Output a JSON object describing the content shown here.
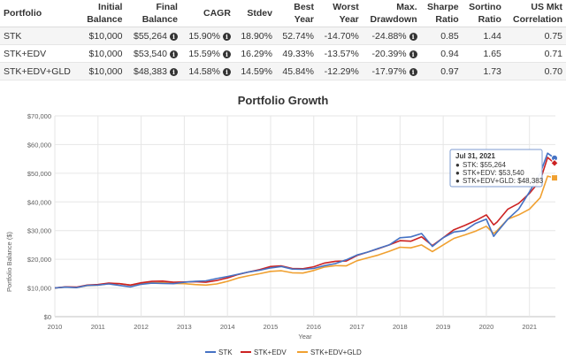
{
  "table": {
    "headers": [
      "Portfolio",
      "Initial\nBalance",
      "Final\nBalance",
      "CAGR",
      "Stdev",
      "Best\nYear",
      "Worst\nYear",
      "Max.\nDrawdown",
      "Sharpe\nRatio",
      "Sortino\nRatio",
      "US Mkt\nCorrelation"
    ],
    "rows": [
      {
        "portfolio": "STK",
        "initial": "$10,000",
        "final": "$55,264",
        "cagr": "15.90%",
        "stdev": "18.90%",
        "best": "52.74%",
        "worst": "-14.70%",
        "drawdown": "-24.88%",
        "sharpe": "0.85",
        "sortino": "1.44",
        "corr": "0.75"
      },
      {
        "portfolio": "STK+EDV",
        "initial": "$10,000",
        "final": "$53,540",
        "cagr": "15.59%",
        "stdev": "16.29%",
        "best": "49.33%",
        "worst": "-13.57%",
        "drawdown": "-20.39%",
        "sharpe": "0.94",
        "sortino": "1.65",
        "corr": "0.71"
      },
      {
        "portfolio": "STK+EDV+GLD",
        "initial": "$10,000",
        "final": "$48,383",
        "cagr": "14.58%",
        "stdev": "14.59%",
        "best": "45.84%",
        "worst": "-12.29%",
        "drawdown": "-17.97%",
        "sharpe": "0.97",
        "sortino": "1.73",
        "corr": "0.70"
      }
    ]
  },
  "chart_data": {
    "type": "line",
    "title": "Portfolio Growth",
    "xlabel": "Year",
    "ylabel": "Portfolio Balance ($)",
    "xlim": [
      2010,
      2021.6
    ],
    "ylim": [
      0,
      70000
    ],
    "x_ticks": [
      "2010",
      "2011",
      "2012",
      "2013",
      "2014",
      "2015",
      "2016",
      "2017",
      "2018",
      "2019",
      "2020",
      "2021"
    ],
    "y_ticks": [
      "$0",
      "$10,000",
      "$20,000",
      "$30,000",
      "$40,000",
      "$50,000",
      "$60,000",
      "$70,000"
    ],
    "grid": true,
    "legend_position": "bottom",
    "x": [
      2010.0,
      2010.25,
      2010.5,
      2010.75,
      2011.0,
      2011.25,
      2011.5,
      2011.75,
      2012.0,
      2012.25,
      2012.5,
      2012.75,
      2013.0,
      2013.25,
      2013.5,
      2013.75,
      2014.0,
      2014.25,
      2014.5,
      2014.75,
      2015.0,
      2015.25,
      2015.5,
      2015.75,
      2016.0,
      2016.25,
      2016.5,
      2016.75,
      2017.0,
      2017.25,
      2017.5,
      2017.75,
      2018.0,
      2018.25,
      2018.5,
      2018.75,
      2019.0,
      2019.25,
      2019.5,
      2019.75,
      2020.0,
      2020.17,
      2020.25,
      2020.5,
      2020.75,
      2021.0,
      2021.25,
      2021.42,
      2021.58
    ],
    "series": [
      {
        "name": "STK",
        "color": "#4572c4",
        "values": [
          10000,
          10300,
          10100,
          10900,
          11000,
          11400,
          10900,
          10400,
          11300,
          11700,
          11600,
          11500,
          12000,
          12300,
          12500,
          13300,
          14000,
          14800,
          15600,
          16200,
          17000,
          17500,
          16600,
          16500,
          16800,
          17800,
          18500,
          19800,
          21500,
          22500,
          23800,
          25000,
          27500,
          27800,
          29000,
          24500,
          27500,
          29500,
          30000,
          32500,
          34000,
          28000,
          29500,
          34000,
          37500,
          43500,
          50000,
          57000,
          55264
        ]
      },
      {
        "name": "STK+EDV",
        "color": "#cc2222",
        "values": [
          10000,
          10400,
          10300,
          11000,
          11200,
          11700,
          11500,
          11000,
          11800,
          12300,
          12400,
          12000,
          12100,
          12200,
          12000,
          12600,
          13500,
          14700,
          15600,
          16400,
          17500,
          17700,
          16800,
          16700,
          17400,
          18700,
          19300,
          19400,
          21300,
          22500,
          23700,
          25000,
          26500,
          26300,
          27800,
          24800,
          27500,
          30300,
          31800,
          33500,
          35500,
          32000,
          33000,
          37500,
          39500,
          43000,
          47500,
          55500,
          53540
        ]
      },
      {
        "name": "STK+EDV+GLD",
        "color": "#f0a030",
        "values": [
          10000,
          10300,
          10200,
          10800,
          11000,
          11500,
          11500,
          11000,
          11600,
          11800,
          11900,
          11600,
          11500,
          11200,
          11000,
          11400,
          12300,
          13500,
          14300,
          15000,
          15800,
          16000,
          15300,
          15200,
          16100,
          17300,
          17800,
          17700,
          19500,
          20500,
          21500,
          22800,
          24200,
          24000,
          25000,
          22700,
          25000,
          27300,
          28500,
          29800,
          31500,
          29000,
          30000,
          34000,
          35500,
          37500,
          41500,
          49000,
          48383
        ]
      }
    ],
    "tooltip": {
      "date": "Jul 31, 2021",
      "lines": [
        "STK: $55,264",
        "STK+EDV: $53,540",
        "STK+EDV+GLD: $48,383"
      ]
    }
  }
}
